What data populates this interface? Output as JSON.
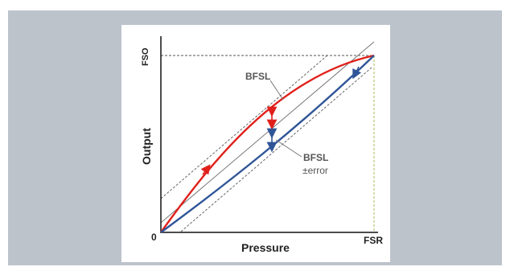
{
  "labels": {
    "fso": "FSO",
    "output": "Output",
    "pressure": "Pressure",
    "zero": "0",
    "fsr": "FSR",
    "bfsl": "BFSL",
    "bfsl_error_line1": "BFSL",
    "bfsl_error_line2": "±error"
  },
  "colors": {
    "frame": "#bcc3cb",
    "panel": "#ffffff",
    "curve_up": "#e0201b",
    "curve_down": "#2f5597",
    "fsr_guide": "#b7c770",
    "line": "#555555"
  }
}
